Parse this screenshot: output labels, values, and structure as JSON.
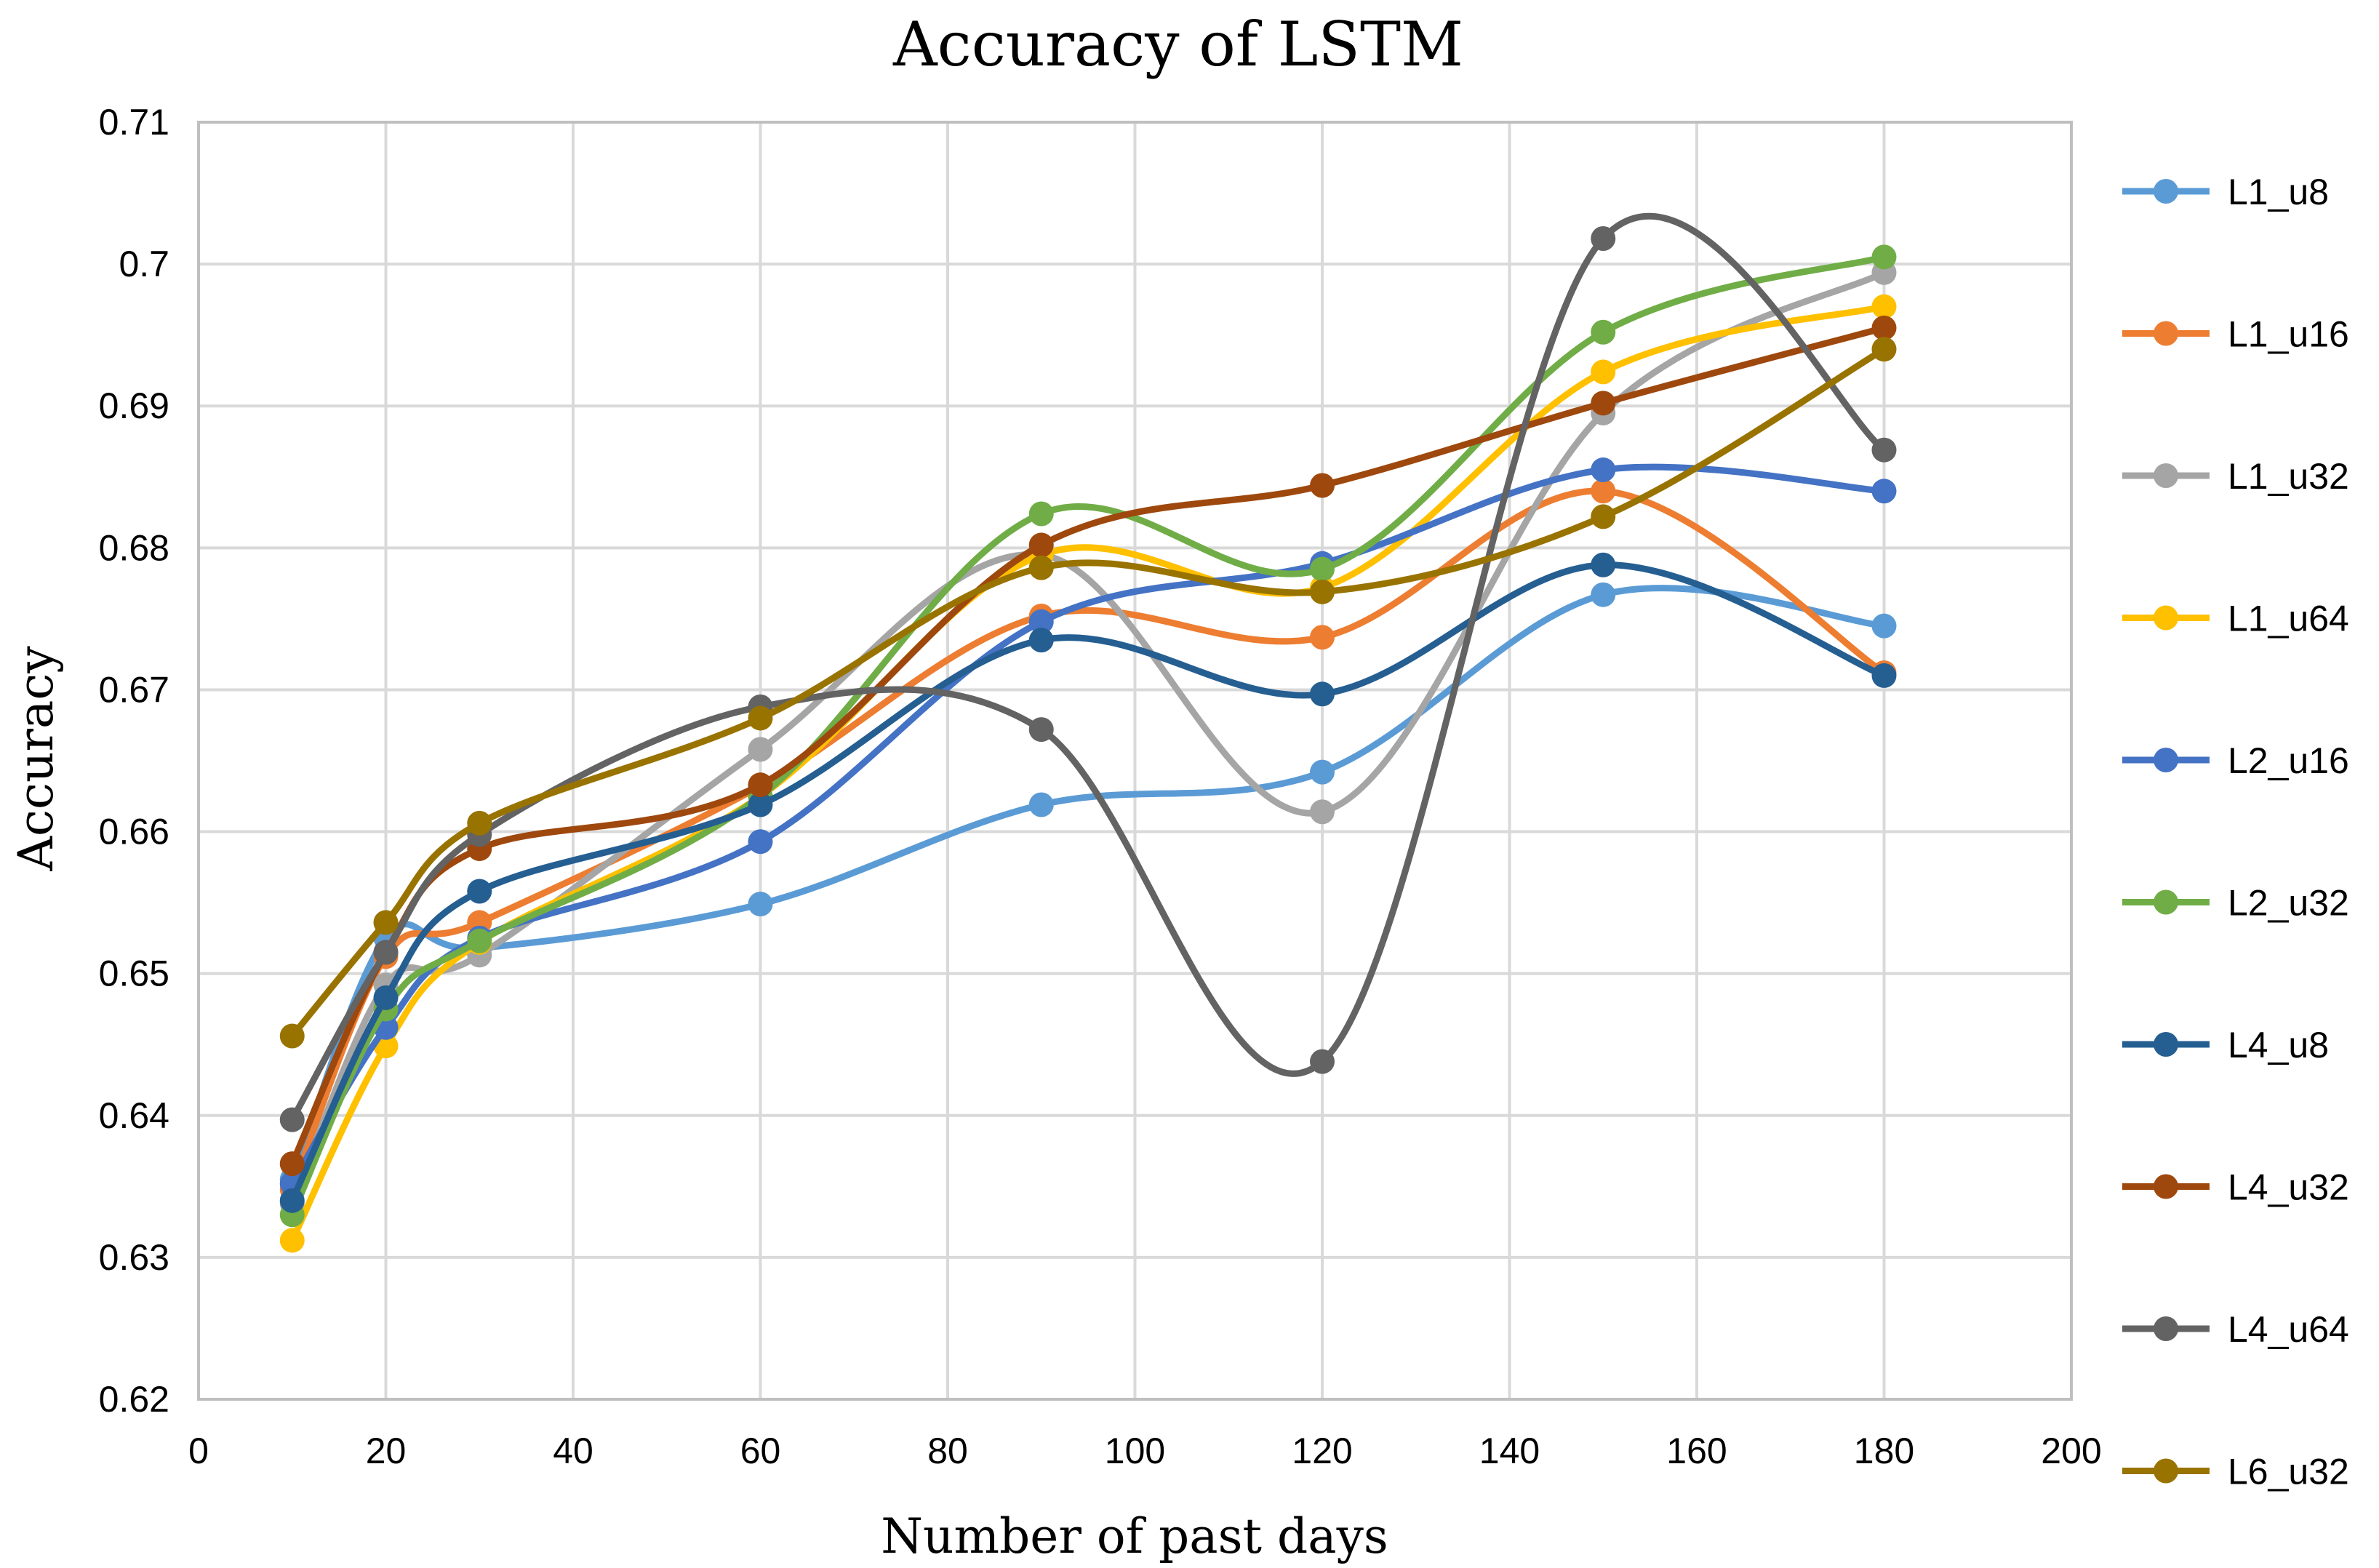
{
  "chart_data": {
    "type": "line",
    "title": "Accuracy of LSTM",
    "xlabel": "Number of past days",
    "ylabel": "Accuracy",
    "xlim": [
      0,
      200
    ],
    "ylim": [
      0.62,
      0.71
    ],
    "xticks": [
      0,
      20,
      40,
      60,
      80,
      100,
      120,
      140,
      160,
      180,
      200
    ],
    "xtick_labels": [
      "0",
      "20",
      "40",
      "60",
      "80",
      "100",
      "120",
      "140",
      "160",
      "180",
      "200"
    ],
    "yticks": [
      0.62,
      0.63,
      0.64,
      0.65,
      0.66,
      0.67,
      0.68,
      0.69,
      0.7,
      0.71
    ],
    "ytick_labels": [
      "0.62",
      "0.63",
      "0.64",
      "0.65",
      "0.66",
      "0.67",
      "0.68",
      "0.69",
      "0.7",
      "0.71"
    ],
    "grid": true,
    "smooth": true,
    "legend_position": "right",
    "x": [
      10,
      20,
      30,
      60,
      90,
      120,
      150,
      180
    ],
    "series": [
      {
        "name": "L1_u8",
        "color": "#5b9bd5",
        "values": [
          0.6355,
          0.6525,
          0.6518,
          0.6549,
          0.6619,
          0.6642,
          0.6767,
          0.6745
        ]
      },
      {
        "name": "L1_u16",
        "color": "#ed7d31",
        "values": [
          0.6348,
          0.6512,
          0.6536,
          0.6632,
          0.6752,
          0.6737,
          0.684,
          0.6712
        ]
      },
      {
        "name": "L1_u32",
        "color": "#a5a5a5",
        "values": [
          0.6338,
          0.6492,
          0.6513,
          0.6658,
          0.6795,
          0.6614,
          0.6895,
          0.6994
        ]
      },
      {
        "name": "L1_u64",
        "color": "#ffc000",
        "values": [
          0.6312,
          0.6449,
          0.6522,
          0.6625,
          0.6795,
          0.6772,
          0.6924,
          0.697
        ]
      },
      {
        "name": "L2_u16",
        "color": "#4472c4",
        "values": [
          0.6352,
          0.6462,
          0.6525,
          0.6593,
          0.6748,
          0.6789,
          0.6855,
          0.684
        ]
      },
      {
        "name": "L2_u32",
        "color": "#70ad47",
        "values": [
          0.633,
          0.6475,
          0.6523,
          0.6625,
          0.6824,
          0.6785,
          0.6952,
          0.7005
        ]
      },
      {
        "name": "L4_u8",
        "color": "#255e91",
        "values": [
          0.634,
          0.6483,
          0.6558,
          0.6619,
          0.6735,
          0.6697,
          0.6788,
          0.671
        ]
      },
      {
        "name": "L4_u32",
        "color": "#9e480e",
        "values": [
          0.6366,
          0.6515,
          0.6588,
          0.6633,
          0.6802,
          0.6844,
          0.6902,
          0.6955
        ]
      },
      {
        "name": "L4_u64",
        "color": "#636363",
        "values": [
          0.6397,
          0.6515,
          0.6598,
          0.6688,
          0.6672,
          0.6438,
          0.7018,
          0.6869
        ]
      },
      {
        "name": "L6_u32",
        "color": "#997300",
        "values": [
          0.6456,
          0.6536,
          0.6606,
          0.668,
          0.6786,
          0.6769,
          0.6822,
          0.694
        ]
      }
    ]
  }
}
